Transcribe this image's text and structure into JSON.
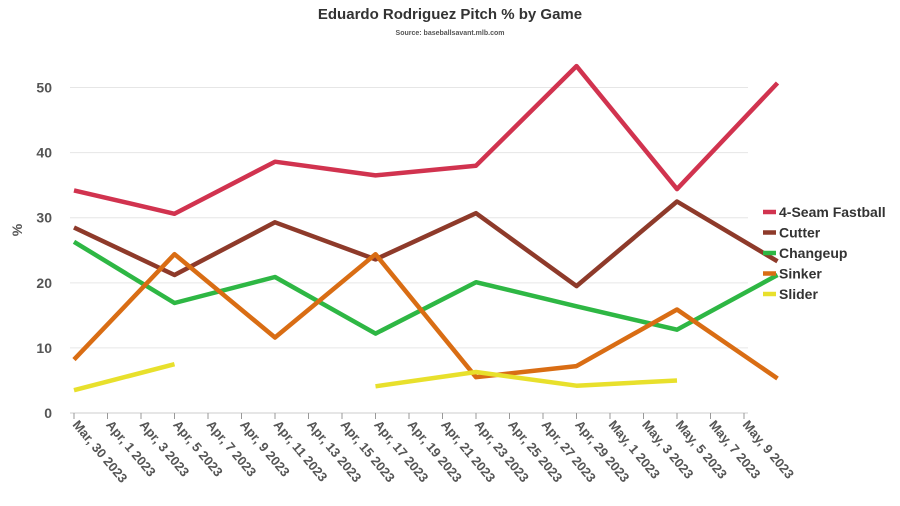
{
  "chart_data": {
    "type": "line",
    "title": "Eduardo Rodriguez Pitch % by Game",
    "subtitle": "Source: baseballsavant.mlb.com",
    "xlabel": "",
    "ylabel": "%",
    "categories": [
      "Mar, 30 2023",
      "Apr, 1 2023",
      "Apr, 3 2023",
      "Apr, 5 2023",
      "Apr, 7 2023",
      "Apr, 9 2023",
      "Apr, 11 2023",
      "Apr, 13 2023",
      "Apr, 15 2023",
      "Apr, 17 2023",
      "Apr, 19 2023",
      "Apr, 21 2023",
      "Apr, 23 2023",
      "Apr, 25 2023",
      "Apr, 27 2023",
      "Apr, 29 2023",
      "May, 1 2023",
      "May, 3 2023",
      "May, 5 2023",
      "May, 7 2023",
      "May, 9 2023"
    ],
    "ylim": [
      0,
      55
    ],
    "yticks": [
      0,
      10,
      20,
      30,
      40,
      50
    ],
    "grid": true,
    "legend_position": "right",
    "series": [
      {
        "name": "4-Seam Fastball",
        "color": "#d1334f",
        "points": [
          [
            0,
            34.2
          ],
          [
            3,
            30.6
          ],
          [
            6,
            38.6
          ],
          [
            9,
            36.5
          ],
          [
            12,
            38.0
          ],
          [
            15,
            53.3
          ],
          [
            18,
            34.4
          ],
          [
            21,
            50.7
          ]
        ]
      },
      {
        "name": "Cutter",
        "color": "#8e3a2a",
        "points": [
          [
            0,
            28.5
          ],
          [
            3,
            21.2
          ],
          [
            6,
            29.3
          ],
          [
            9,
            23.6
          ],
          [
            12,
            30.7
          ],
          [
            15,
            19.5
          ],
          [
            18,
            32.5
          ],
          [
            21,
            23.3
          ]
        ]
      },
      {
        "name": "Changeup",
        "color": "#2eb744",
        "points": [
          [
            0,
            26.3
          ],
          [
            3,
            16.9
          ],
          [
            6,
            20.9
          ],
          [
            9,
            12.2
          ],
          [
            12,
            20.1
          ],
          [
            15,
            16.4
          ],
          [
            18,
            12.8
          ],
          [
            21,
            21.2
          ]
        ]
      },
      {
        "name": "Sinker",
        "color": "#d96d14",
        "points": [
          [
            0,
            8.2
          ],
          [
            3,
            24.4
          ],
          [
            6,
            11.6
          ],
          [
            9,
            24.4
          ],
          [
            12,
            5.5
          ],
          [
            15,
            7.2
          ],
          [
            18,
            15.9
          ],
          [
            21,
            5.3
          ]
        ]
      },
      {
        "name": "Slider",
        "color": "#e8e02c",
        "points": [
          [
            0,
            3.5
          ],
          [
            3,
            7.5
          ],
          null,
          [
            9,
            4.1
          ],
          [
            12,
            6.3
          ],
          [
            15,
            4.2
          ],
          [
            18,
            5.0
          ],
          null
        ]
      }
    ]
  }
}
